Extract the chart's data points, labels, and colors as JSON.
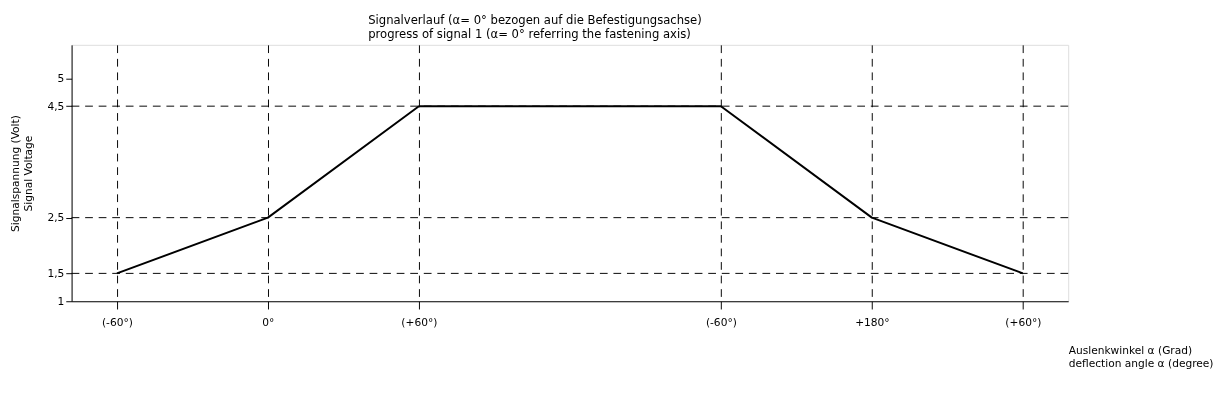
{
  "chart_data": {
    "type": "line",
    "title": "Signalverlauf (α= 0° bezogen auf die Befestigungsachse)",
    "subtitle": "progress of signal 1 (α= 0° referring the fastening axis)",
    "xlabel": "Auslenkwinkel α (Grad)\ndeflection angle α (degree)",
    "ylabel": "Signalspannung (Volt)\nSignal Voltage",
    "categories": [
      "(-60°)",
      "0°",
      "(+60°)",
      null,
      "(-60°)",
      "+180°",
      "(+60°)"
    ],
    "series": [
      {
        "color": "#000000",
        "values": [
          1.5,
          2.5,
          4.5,
          4.5,
          4.5,
          2.5,
          1.5
        ]
      }
    ],
    "ylim": [
      1,
      5.6
    ],
    "yticks": [
      {
        "value": 1,
        "label": "1"
      },
      {
        "value": 1.5,
        "label": "1,5"
      },
      {
        "value": 2.5,
        "label": "2,5"
      },
      {
        "value": 4.5,
        "label": "4,5"
      },
      {
        "value": 5,
        "label": "5"
      }
    ],
    "ref_lines": [
      {
        "axis": "y",
        "value": 4.5,
        "line_style": "dashed",
        "color": "#000000"
      },
      {
        "axis": "y",
        "value": 2.5,
        "line_style": "dashed",
        "color": "#000000"
      },
      {
        "axis": "y",
        "value": 1.5,
        "line_style": "dashed",
        "color": "#000000"
      }
    ],
    "grid": "x",
    "marker": "none",
    "line_style": "solid"
  }
}
